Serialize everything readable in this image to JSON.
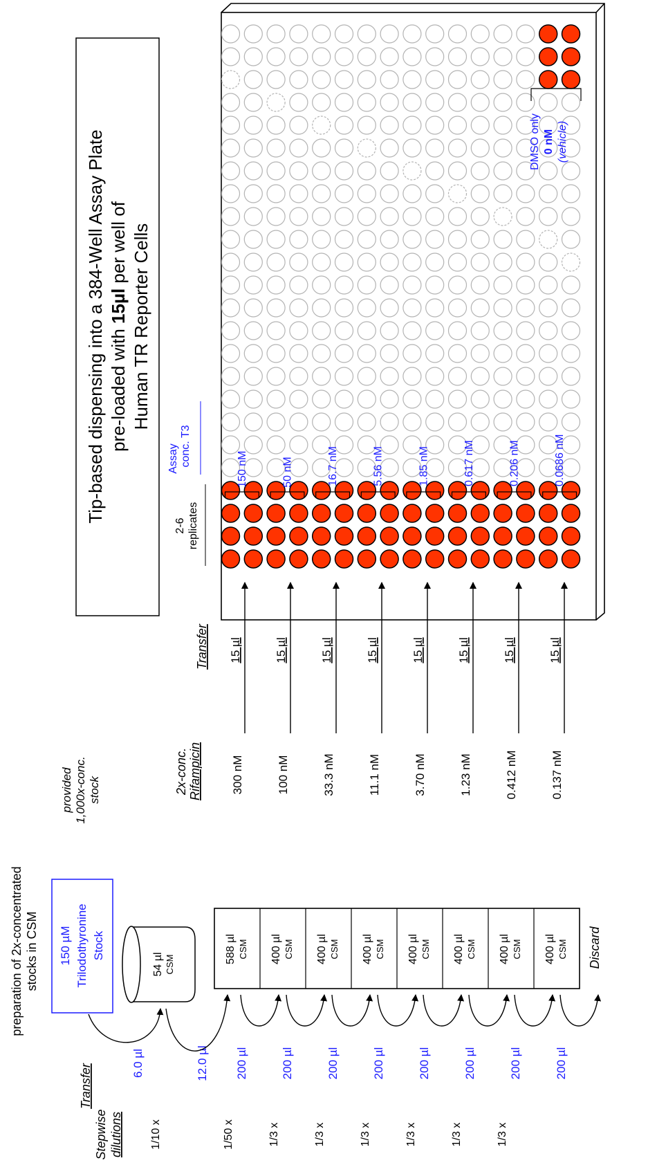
{
  "title": {
    "prefix": "Tip-based dispensing into a 384-Well Assay Plate",
    "line2_a": "pre-loaded with ",
    "line2_bold": "15µl",
    "line2_b": " per well of",
    "line3": "Human TR Reporter Cells"
  },
  "prep_header": {
    "line1": "preparation of 2x-concentrated",
    "line2": "stocks in CSM"
  },
  "provided": {
    "line1": "provided",
    "line2": "1,000x-conc.",
    "line3": "stock"
  },
  "stock": {
    "line1": "150 µM",
    "line2": "Trilodothyronine",
    "line3": "Stock"
  },
  "column_headers": {
    "stepwise": "Stepwise",
    "dilutions": "dilutions",
    "transfer_left": "Transfer",
    "conc_2x": "2x-conc.",
    "rifampicin": "Rifampicin",
    "transfer_right": "Transfer",
    "replicates_1": "2-6",
    "replicates_2": "replicates",
    "assay_1": "Assay",
    "assay_2": "conc. T3"
  },
  "cup": {
    "volume": "54 µl",
    "medium": "CSM"
  },
  "dilution_1_10": "1/10 x",
  "first_transfers": [
    "6.0 µl",
    "12.0 µl"
  ],
  "tubes": [
    {
      "volume": "588 µl",
      "medium": "CSM",
      "dilution": "1/50 x",
      "carry": "200 µl"
    },
    {
      "volume": "400 µl",
      "medium": "CSM",
      "dilution": "1/3 x",
      "carry": "200 µl"
    },
    {
      "volume": "400 µl",
      "medium": "CSM",
      "dilution": "1/3 x",
      "carry": "200 µl"
    },
    {
      "volume": "400 µl",
      "medium": "CSM",
      "dilution": "1/3 x",
      "carry": "200 µl"
    },
    {
      "volume": "400 µl",
      "medium": "CSM",
      "dilution": "1/3 x",
      "carry": "200 µl"
    },
    {
      "volume": "400 µl",
      "medium": "CSM",
      "dilution": "1/3 x",
      "carry": "200 µl"
    },
    {
      "volume": "400 µl",
      "medium": "CSM",
      "dilution": "1/3 x",
      "carry": "200 µl"
    },
    {
      "volume": "400 µl",
      "medium": "CSM",
      "dilution": "",
      "carry": "200 µl"
    }
  ],
  "discard": "Discard",
  "conc_2x_values": [
    "300 nM",
    "100 nM",
    "33.3 nM",
    "11.1 nM",
    "3.70 nM",
    "1.23 nM",
    "0.412 nM",
    "0.137 nM"
  ],
  "transfer_volumes": [
    "15 µl",
    "15 µl",
    "15 µl",
    "15 µl",
    "15 µl",
    "15 µl",
    "15 µl",
    "15 µl"
  ],
  "assay_concs": [
    "150 nM",
    "50 nM",
    "16.7 nM",
    "5.56 nM",
    "1.85 nM",
    "0.617 nM",
    "0.206 nM",
    "0.0686 nM"
  ],
  "vehicle": {
    "line1": "DMSO only",
    "line2": "0 nM",
    "line3": "(vehicle)"
  },
  "colors": {
    "blue": "#1a1aff",
    "filled_well": "#ff3300",
    "empty_well": "#b3b3b3",
    "black": "#000000"
  }
}
